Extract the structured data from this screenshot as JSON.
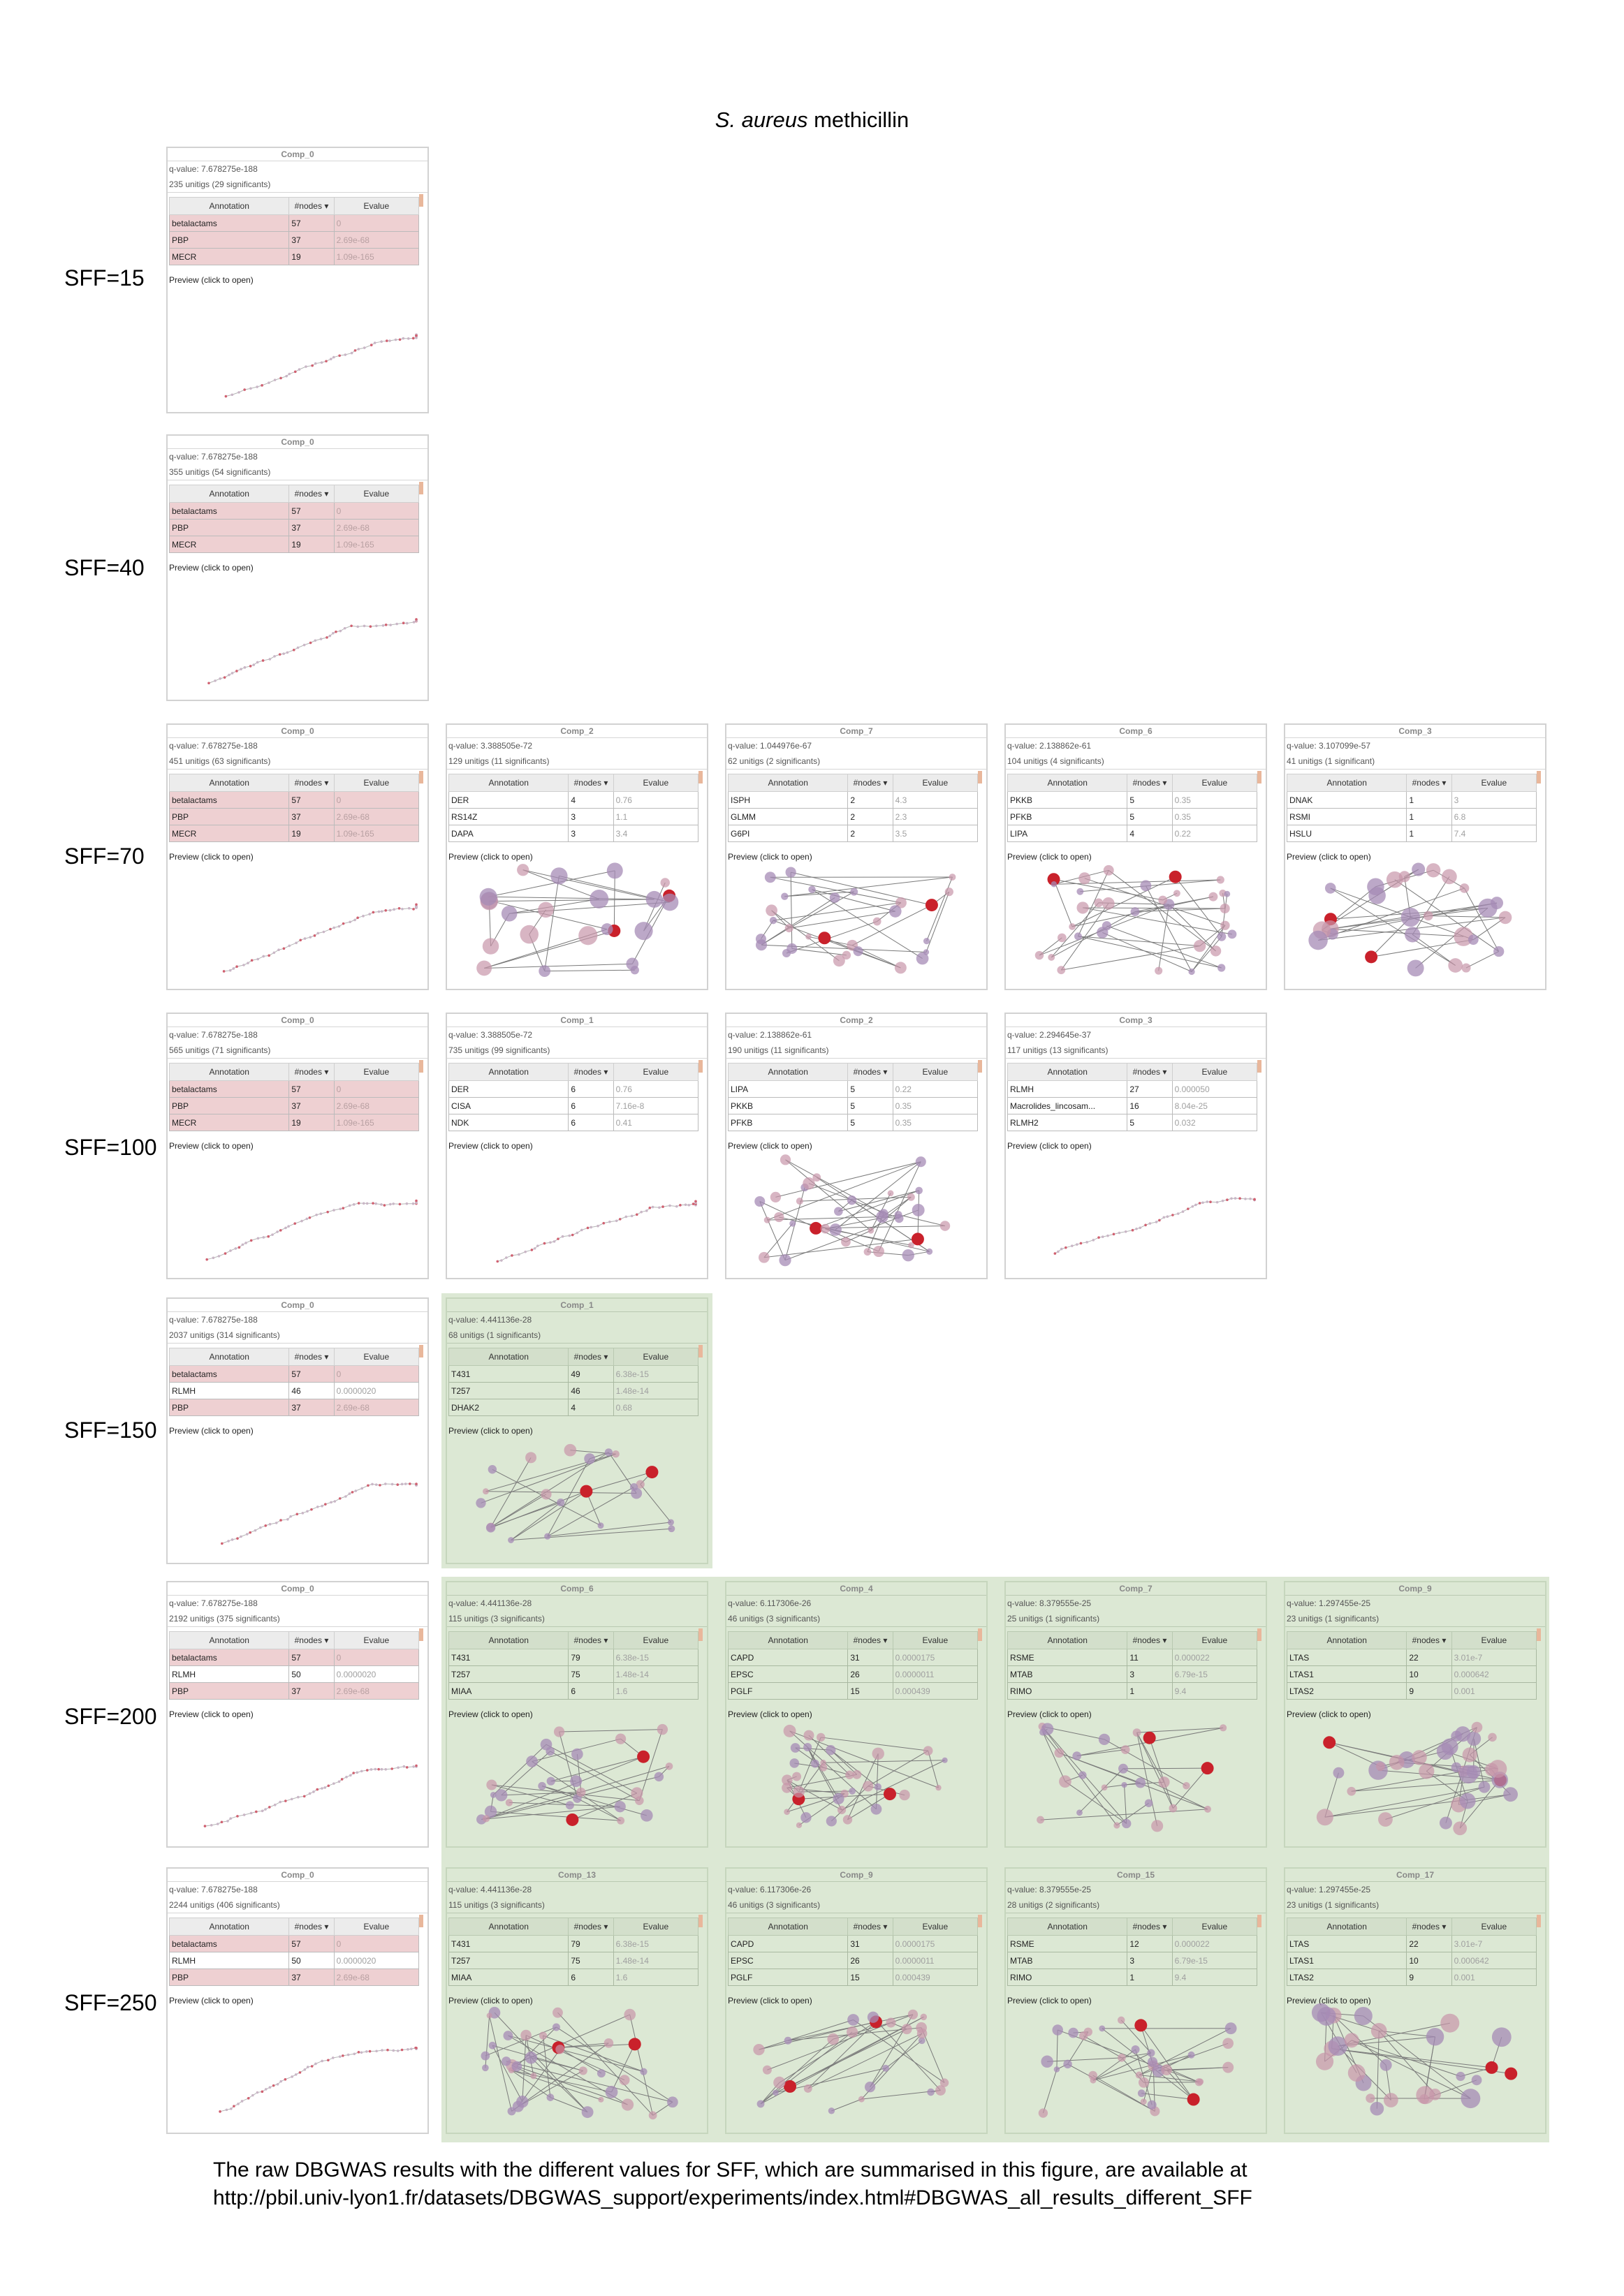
{
  "title_italic": "S. aureus",
  "title_rest": " methicillin",
  "footer": {
    "line1": "The raw DBGWAS results  with the different values for SFF, which are summarised in  this figure, are available at",
    "line2": "http://pbil.univ-lyon1.fr/datasets/DBGWAS_support/experiments/index.html#DBGWAS_all_results_different_SFF"
  },
  "table_headers": {
    "annotation": "Annotation",
    "nodes": "#nodes ▾",
    "evalue": "Evalue"
  },
  "preview_label": "Preview (click to open)",
  "colors": {
    "highlight_row": "#eed0d2",
    "green_panel": "#dce8d4",
    "node_red": "#c9212b",
    "node_purple": "#a58bb5"
  },
  "rows": [
    {
      "label": "SFF=15",
      "cards": [
        {
          "comp": "Comp_0",
          "qvalue": "q-value: 7.678275e-188",
          "unitigs": "235 unitigs (29 significants)",
          "green": false,
          "annotations": [
            [
              "betalactams",
              "57",
              "0",
              true
            ],
            [
              "PBP",
              "37",
              "2.69e-68",
              true
            ],
            [
              "MECR",
              "19",
              "1.09e-165",
              true
            ]
          ]
        }
      ]
    },
    {
      "label": "SFF=40",
      "cards": [
        {
          "comp": "Comp_0",
          "qvalue": "q-value: 7.678275e-188",
          "unitigs": "355 unitigs (54 significants)",
          "green": false,
          "annotations": [
            [
              "betalactams",
              "57",
              "0",
              true
            ],
            [
              "PBP",
              "37",
              "2.69e-68",
              true
            ],
            [
              "MECR",
              "19",
              "1.09e-165",
              true
            ]
          ]
        }
      ]
    },
    {
      "label": "SFF=70",
      "cards": [
        {
          "comp": "Comp_0",
          "qvalue": "q-value: 7.678275e-188",
          "unitigs": "451 unitigs (63 significants)",
          "green": false,
          "annotations": [
            [
              "betalactams",
              "57",
              "0",
              true
            ],
            [
              "PBP",
              "37",
              "2.69e-68",
              true
            ],
            [
              "MECR",
              "19",
              "1.09e-165",
              true
            ]
          ]
        },
        {
          "comp": "Comp_2",
          "qvalue": "q-value: 3.388505e-72",
          "unitigs": "129 unitigs (11 significants)",
          "green": false,
          "annotations": [
            [
              "DER",
              "4",
              "0.76",
              false
            ],
            [
              "RS14Z",
              "3",
              "1.1",
              false
            ],
            [
              "DAPA",
              "3",
              "3.4",
              false
            ]
          ]
        },
        {
          "comp": "Comp_7",
          "qvalue": "q-value: 1.044976e-67",
          "unitigs": "62 unitigs (2 significants)",
          "green": false,
          "annotations": [
            [
              "ISPH",
              "2",
              "4.3",
              false
            ],
            [
              "GLMM",
              "2",
              "2.3",
              false
            ],
            [
              "G6PI",
              "2",
              "3.5",
              false
            ]
          ]
        },
        {
          "comp": "Comp_6",
          "qvalue": "q-value: 2.138862e-61",
          "unitigs": "104 unitigs (4 significants)",
          "green": false,
          "annotations": [
            [
              "PKKB",
              "5",
              "0.35",
              false
            ],
            [
              "PFKB",
              "5",
              "0.35",
              false
            ],
            [
              "LIPA",
              "4",
              "0.22",
              false
            ]
          ]
        },
        {
          "comp": "Comp_3",
          "qvalue": "q-value: 3.107099e-57",
          "unitigs": "41 unitigs (1 significant)",
          "green": false,
          "annotations": [
            [
              "DNAK",
              "1",
              "3",
              false
            ],
            [
              "RSMI",
              "1",
              "6.8",
              false
            ],
            [
              "HSLU",
              "1",
              "7.4",
              false
            ]
          ]
        }
      ]
    },
    {
      "label": "SFF=100",
      "cards": [
        {
          "comp": "Comp_0",
          "qvalue": "q-value: 7.678275e-188",
          "unitigs": "565 unitigs (71 significants)",
          "green": false,
          "annotations": [
            [
              "betalactams",
              "57",
              "0",
              true
            ],
            [
              "PBP",
              "37",
              "2.69e-68",
              true
            ],
            [
              "MECR",
              "19",
              "1.09e-165",
              true
            ]
          ]
        },
        {
          "comp": "Comp_1",
          "qvalue": "q-value: 3.388505e-72",
          "unitigs": "735 unitigs (99 significants)",
          "green": false,
          "annotations": [
            [
              "DER",
              "6",
              "0.76",
              false
            ],
            [
              "CISA",
              "6",
              "7.16e-8",
              false
            ],
            [
              "NDK",
              "6",
              "0.41",
              false
            ]
          ]
        },
        {
          "comp": "Comp_2",
          "qvalue": "q-value: 2.138862e-61",
          "unitigs": "190 unitigs (11 significants)",
          "green": false,
          "annotations": [
            [
              "LIPA",
              "5",
              "0.22",
              false
            ],
            [
              "PKKB",
              "5",
              "0.35",
              false
            ],
            [
              "PFKB",
              "5",
              "0.35",
              false
            ]
          ]
        },
        {
          "comp": "Comp_3",
          "qvalue": "q-value: 2.294645e-37",
          "unitigs": "117 unitigs (13 significants)",
          "green": false,
          "annotations": [
            [
              "RLMH",
              "27",
              "0.000050",
              false
            ],
            [
              "Macrolides_lincosam...",
              "16",
              "8.04e-25",
              false
            ],
            [
              "RLMH2",
              "5",
              "0.032",
              false
            ]
          ]
        }
      ]
    },
    {
      "label": "SFF=150",
      "cards": [
        {
          "comp": "Comp_0",
          "qvalue": "q-value: 7.678275e-188",
          "unitigs": "2037 unitigs (314 significants)",
          "green": false,
          "annotations": [
            [
              "betalactams",
              "57",
              "0",
              true
            ],
            [
              "RLMH",
              "46",
              "0.0000020",
              false
            ],
            [
              "PBP",
              "37",
              "2.69e-68",
              true
            ]
          ]
        },
        {
          "comp": "Comp_1",
          "qvalue": "q-value: 4.441136e-28",
          "unitigs": "68 unitigs (1 significants)",
          "green": true,
          "annotations": [
            [
              "T431",
              "49",
              "6.38e-15",
              false
            ],
            [
              "T257",
              "46",
              "1.48e-14",
              false
            ],
            [
              "DHAK2",
              "4",
              "0.68",
              false
            ]
          ]
        }
      ]
    },
    {
      "label": "SFF=200",
      "cards": [
        {
          "comp": "Comp_0",
          "qvalue": "q-value: 7.678275e-188",
          "unitigs": "2192 unitigs (375 significants)",
          "green": false,
          "annotations": [
            [
              "betalactams",
              "57",
              "0",
              true
            ],
            [
              "RLMH",
              "50",
              "0.0000020",
              false
            ],
            [
              "PBP",
              "37",
              "2.69e-68",
              true
            ]
          ]
        },
        {
          "comp": "Comp_6",
          "qvalue": "q-value: 4.441136e-28",
          "unitigs": "115 unitigs (3 significants)",
          "green": true,
          "annotations": [
            [
              "T431",
              "79",
              "6.38e-15",
              false
            ],
            [
              "T257",
              "75",
              "1.48e-14",
              false
            ],
            [
              "MIAA",
              "6",
              "1.6",
              false
            ]
          ]
        },
        {
          "comp": "Comp_4",
          "qvalue": "q-value: 6.117306e-26",
          "unitigs": "46 unitigs (3 significants)",
          "green": true,
          "annotations": [
            [
              "CAPD",
              "31",
              "0.0000175",
              false
            ],
            [
              "EPSC",
              "26",
              "0.0000011",
              false
            ],
            [
              "PGLF",
              "15",
              "0.000439",
              false
            ]
          ]
        },
        {
          "comp": "Comp_7",
          "qvalue": "q-value: 8.379555e-25",
          "unitigs": "25 unitigs (1 significants)",
          "green": true,
          "annotations": [
            [
              "RSME",
              "11",
              "0.000022",
              false
            ],
            [
              "MTAB",
              "3",
              "6.79e-15",
              false
            ],
            [
              "RIMO",
              "1",
              "9.4",
              false
            ]
          ]
        },
        {
          "comp": "Comp_9",
          "qvalue": "q-value: 1.297455e-25",
          "unitigs": "23 unitigs (1 significants)",
          "green": true,
          "annotations": [
            [
              "LTAS",
              "22",
              "3.01e-7",
              false
            ],
            [
              "LTAS1",
              "10",
              "0.000642",
              false
            ],
            [
              "LTAS2",
              "9",
              "0.001",
              false
            ]
          ]
        }
      ]
    },
    {
      "label": "SFF=250",
      "cards": [
        {
          "comp": "Comp_0",
          "qvalue": "q-value: 7.678275e-188",
          "unitigs": "2244 unitigs (406 significants)",
          "green": false,
          "annotations": [
            [
              "betalactams",
              "57",
              "0",
              true
            ],
            [
              "RLMH",
              "50",
              "0.0000020",
              false
            ],
            [
              "PBP",
              "37",
              "2.69e-68",
              true
            ]
          ]
        },
        {
          "comp": "Comp_13",
          "qvalue": "q-value: 4.441136e-28",
          "unitigs": "115 unitigs (3 significants)",
          "green": true,
          "annotations": [
            [
              "T431",
              "79",
              "6.38e-15",
              false
            ],
            [
              "T257",
              "75",
              "1.48e-14",
              false
            ],
            [
              "MIAA",
              "6",
              "1.6",
              false
            ]
          ]
        },
        {
          "comp": "Comp_9",
          "qvalue": "q-value: 6.117306e-26",
          "unitigs": "46 unitigs (3 significants)",
          "green": true,
          "annotations": [
            [
              "CAPD",
              "31",
              "0.0000175",
              false
            ],
            [
              "EPSC",
              "26",
              "0.0000011",
              false
            ],
            [
              "PGLF",
              "15",
              "0.000439",
              false
            ]
          ]
        },
        {
          "comp": "Comp_15",
          "qvalue": "q-value: 8.379555e-25",
          "unitigs": "28 unitigs (2 significants)",
          "green": true,
          "annotations": [
            [
              "RSME",
              "12",
              "0.000022",
              false
            ],
            [
              "MTAB",
              "3",
              "6.79e-15",
              false
            ],
            [
              "RIMO",
              "1",
              "9.4",
              false
            ]
          ]
        },
        {
          "comp": "Comp_17",
          "qvalue": "q-value: 1.297455e-25",
          "unitigs": "23 unitigs (1 significants)",
          "green": true,
          "annotations": [
            [
              "LTAS",
              "22",
              "3.01e-7",
              false
            ],
            [
              "LTAS1",
              "10",
              "0.000642",
              false
            ],
            [
              "LTAS2",
              "9",
              "0.001",
              false
            ]
          ]
        }
      ]
    }
  ]
}
